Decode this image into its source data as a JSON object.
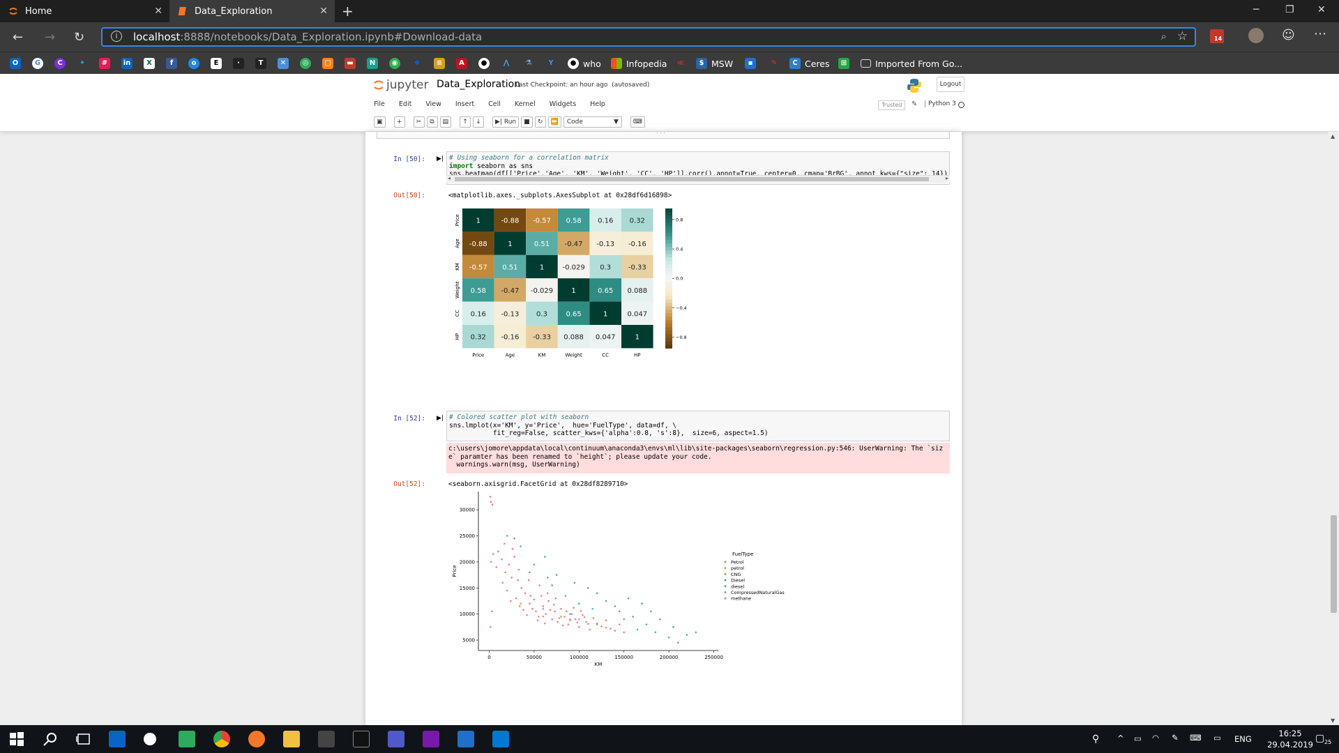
{
  "browser": {
    "tabs": [
      {
        "label": "Home"
      },
      {
        "label": "Data_Exploration"
      }
    ],
    "url_host": "localhost",
    "url_path": ":8888/notebooks/Data_Exploration.ipynb#Download-data",
    "notification_badge": "14",
    "bookmarks": [
      {
        "label": "who"
      },
      {
        "label": "Infopedia"
      },
      {
        "label": "MSW"
      },
      {
        "label": "Ceres"
      },
      {
        "label": "Imported From Go..."
      }
    ]
  },
  "notebook": {
    "logo": "jupyter",
    "title": "Data_Exploration",
    "checkpoint": "Last Checkpoint: an hour ago",
    "autosave": "(autosaved)",
    "logout": "Logout",
    "menu": [
      "File",
      "Edit",
      "View",
      "Insert",
      "Cell",
      "Kernel",
      "Widgets",
      "Help"
    ],
    "trusted": "Trusted",
    "kernel": "Python 3",
    "toolbar": {
      "run": "Run",
      "cell_type": "Code"
    },
    "collapsed_marker": ". . .",
    "cells": {
      "cell50": {
        "in_prompt": "In [50]:",
        "code_line1": "# Using seaborn for a correlation matrix",
        "code_line2_kw": "import",
        "code_line2_rest": " seaborn as sns",
        "code_line3": "sns.heatmap(df[['Price','Age', 'KM', 'Weight', 'CC', 'HP']].corr(),annot=True, center=0, cmap='BrBG', annot_kws={\"size\": 14})",
        "out_prompt": "Out[50]:",
        "out_text": "<matplotlib.axes._subplots.AxesSubplot at 0x28df6d16898>"
      },
      "cell52": {
        "in_prompt": "In [52]:",
        "code_line1": "# Colored scatter plot with seaborn",
        "code_line2": "sns.lmplot(x='KM', y='Price',  hue='FuelType', data=df, \\",
        "code_line3": "           fit_reg=False, scatter_kws={'alpha':0.8, 's':8},  size=6, aspect=1.5)",
        "stderr": "c:\\users\\jomore\\appdata\\local\\continuum\\anaconda3\\envs\\ml\\lib\\site-packages\\seaborn\\regression.py:546: UserWarning: The `siz\ne` paramter has been renamed to `height`; please update your code.\n  warnings.warn(msg, UserWarning)",
        "out_prompt": "Out[52]:",
        "out_text": "<seaborn.axisgrid.FacetGrid at 0x28df8289710>"
      }
    }
  },
  "taskbar": {
    "language": "ENG",
    "time": "16:25",
    "date": "29.04.2019",
    "notif_count": "25"
  },
  "chart_data": [
    {
      "type": "heatmap",
      "title": "",
      "xlabel": "",
      "ylabel": "",
      "categories": [
        "Price",
        "Age",
        "KM",
        "Weight",
        "CC",
        "HP"
      ],
      "values": [
        [
          1,
          -0.88,
          -0.57,
          0.58,
          0.16,
          0.32
        ],
        [
          -0.88,
          1,
          0.51,
          -0.47,
          -0.13,
          -0.16
        ],
        [
          -0.57,
          0.51,
          1,
          -0.029,
          0.3,
          -0.33
        ],
        [
          0.58,
          -0.47,
          -0.029,
          1,
          0.65,
          0.088
        ],
        [
          0.16,
          -0.13,
          0.3,
          0.65,
          1,
          0.047
        ],
        [
          0.32,
          -0.16,
          -0.33,
          0.088,
          0.047,
          1
        ]
      ],
      "colorbar_ticks": [
        0.8,
        0.4,
        0.0,
        -0.4,
        -0.8
      ],
      "colorbar_labels": [
        "0.8",
        "0.4",
        "0.0",
        "−0.4",
        "−0.8"
      ],
      "colormap": "BrBG"
    },
    {
      "type": "scatter",
      "title": "",
      "xlabel": "KM",
      "ylabel": "Price",
      "xlim": [
        -12000,
        255000
      ],
      "ylim": [
        3000,
        33500
      ],
      "xticks": [
        0,
        50000,
        100000,
        150000,
        200000,
        250000
      ],
      "yticks": [
        5000,
        10000,
        15000,
        20000,
        25000,
        30000
      ],
      "legend_title": "FuelType",
      "legend_position": "right",
      "series": [
        {
          "name": "Petrol",
          "color": "#e8696e",
          "points": [
            [
              1200,
              32500
            ],
            [
              2000,
              31500
            ],
            [
              3500,
              31000
            ],
            [
              2000,
              20000
            ],
            [
              4500,
              21500
            ],
            [
              8000,
              19000
            ],
            [
              10000,
              22000
            ],
            [
              14000,
              20500
            ],
            [
              18000,
              18000
            ],
            [
              22000,
              19500
            ],
            [
              25000,
              17000
            ],
            [
              28000,
              21000
            ],
            [
              32000,
              16500
            ],
            [
              36000,
              15000
            ],
            [
              40000,
              14000
            ],
            [
              45000,
              12000
            ],
            [
              48000,
              11000
            ],
            [
              52000,
              10500
            ],
            [
              55000,
              9500
            ],
            [
              60000,
              11500
            ],
            [
              63000,
              10000
            ],
            [
              66000,
              12500
            ],
            [
              70000,
              9000
            ],
            [
              73000,
              10500
            ],
            [
              76000,
              8500
            ],
            [
              80000,
              11000
            ],
            [
              84000,
              9500
            ],
            [
              88000,
              8000
            ],
            [
              92000,
              10000
            ],
            [
              96000,
              9000
            ],
            [
              100000,
              7500
            ],
            [
              104000,
              9800
            ],
            [
              108000,
              8500
            ],
            [
              112000,
              7000
            ],
            [
              116000,
              9200
            ],
            [
              120000,
              8200
            ],
            [
              125000,
              7600
            ],
            [
              130000,
              8800
            ],
            [
              135000,
              7200
            ],
            [
              140000,
              6800
            ],
            [
              145000,
              8000
            ],
            [
              150000,
              6500
            ],
            [
              20000,
              14500
            ],
            [
              24000,
              12500
            ],
            [
              30000,
              13000
            ],
            [
              34000,
              11500
            ],
            [
              38000,
              10800
            ],
            [
              42000,
              9800
            ],
            [
              46000,
              13500
            ],
            [
              50000,
              12800
            ],
            [
              54000,
              8800
            ],
            [
              58000,
              13500
            ],
            [
              62000,
              8200
            ],
            [
              68000,
              10800
            ],
            [
              72000,
              11800
            ],
            [
              78000,
              9200
            ],
            [
              82000,
              7800
            ],
            [
              86000,
              10500
            ],
            [
              90000,
              8800
            ],
            [
              94000,
              11200
            ],
            [
              98000,
              8400
            ],
            [
              102000,
              10600
            ],
            [
              106000,
              9400
            ],
            [
              110000,
              8100
            ],
            [
              15000,
              16000
            ],
            [
              17000,
              23500
            ],
            [
              26000,
              22500
            ],
            [
              33000,
              18500
            ],
            [
              44000,
              16500
            ],
            [
              56000,
              15500
            ],
            [
              65000,
              14000
            ],
            [
              74000,
              13000
            ],
            [
              1500,
              7500
            ],
            [
              3000,
              10500
            ]
          ]
        },
        {
          "name": "petrol",
          "color": "#d98e3e",
          "points": [
            [
              35000,
              12000
            ],
            [
              60000,
              9500
            ],
            [
              90000,
              9000
            ],
            [
              130000,
              7400
            ]
          ]
        },
        {
          "name": "CNG",
          "color": "#8aa53c",
          "points": [
            [
              80000,
              9500
            ],
            [
              120000,
              8000
            ]
          ]
        },
        {
          "name": "Diesel",
          "color": "#36a56e",
          "points": [
            [
              20000,
              25000
            ],
            [
              28000,
              24500
            ],
            [
              35000,
              23000
            ],
            [
              50000,
              19500
            ],
            [
              62000,
              21000
            ],
            [
              75000,
              17500
            ],
            [
              95000,
              16000
            ],
            [
              110000,
              15000
            ],
            [
              130000,
              12500
            ],
            [
              145000,
              10500
            ],
            [
              160000,
              9500
            ],
            [
              175000,
              8000
            ],
            [
              185000,
              6500
            ],
            [
              200000,
              5500
            ],
            [
              220000,
              6000
            ],
            [
              170000,
              12000
            ],
            [
              190000,
              9000
            ],
            [
              205000,
              7500
            ],
            [
              155000,
              13000
            ],
            [
              140000,
              11500
            ],
            [
              180000,
              10500
            ],
            [
              210000,
              4500
            ],
            [
              230000,
              6500
            ],
            [
              85000,
              13500
            ],
            [
              100000,
              12000
            ],
            [
              120000,
              14000
            ],
            [
              45000,
              18000
            ],
            [
              70000,
              15500
            ]
          ]
        },
        {
          "name": "diesel",
          "color": "#3aa7a6",
          "points": [
            [
              65000,
              17000
            ],
            [
              115000,
              11000
            ],
            [
              165000,
              7000
            ]
          ]
        },
        {
          "name": "CompressedNaturalGas",
          "color": "#4d8fe0",
          "points": [
            [
              90000,
              10000
            ],
            [
              150000,
              9000
            ]
          ]
        },
        {
          "name": "methane",
          "color": "#c56fdc",
          "points": [
            [
              60000,
              11000
            ],
            [
              100000,
              9000
            ]
          ]
        }
      ]
    }
  ]
}
